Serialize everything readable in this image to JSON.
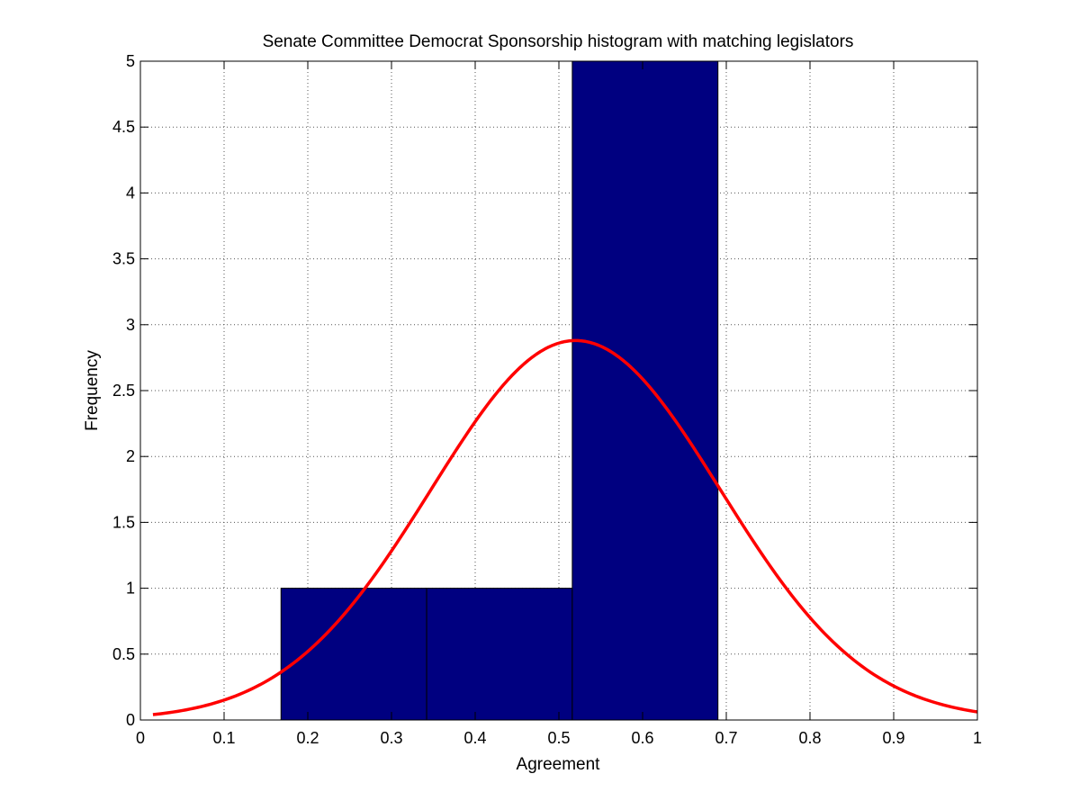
{
  "chart_data": {
    "type": "bar",
    "title": "Senate Committee Democrat Sponsorship histogram with matching legislators",
    "xlabel": "Agreement",
    "ylabel": "Frequency",
    "xlim": [
      0,
      1
    ],
    "ylim": [
      0,
      5
    ],
    "grid": true,
    "xticks": [
      0,
      0.1,
      0.2,
      0.3,
      0.4,
      0.5,
      0.6,
      0.7,
      0.8,
      0.9,
      1
    ],
    "xtick_labels": [
      "0",
      "0.1",
      "0.2",
      "0.3",
      "0.4",
      "0.5",
      "0.6",
      "0.7",
      "0.8",
      "0.9",
      "1"
    ],
    "yticks": [
      0,
      0.5,
      1,
      1.5,
      2,
      2.5,
      3,
      3.5,
      4,
      4.5,
      5
    ],
    "ytick_labels": [
      "0",
      "0.5",
      "1",
      "1.5",
      "2",
      "2.5",
      "3",
      "3.5",
      "4",
      "4.5",
      "5"
    ],
    "bins": [
      {
        "x0": 0.168,
        "x1": 0.342,
        "count": 1
      },
      {
        "x0": 0.342,
        "x1": 0.516,
        "count": 1
      },
      {
        "x0": 0.516,
        "x1": 0.69,
        "count": 5
      }
    ],
    "bar_color": "#000080",
    "fit_curve": {
      "type": "normal",
      "mean": 0.52,
      "std": 0.173,
      "peak": 2.88,
      "x_range": [
        0.015,
        1.0
      ],
      "color": "#ff0000"
    }
  }
}
